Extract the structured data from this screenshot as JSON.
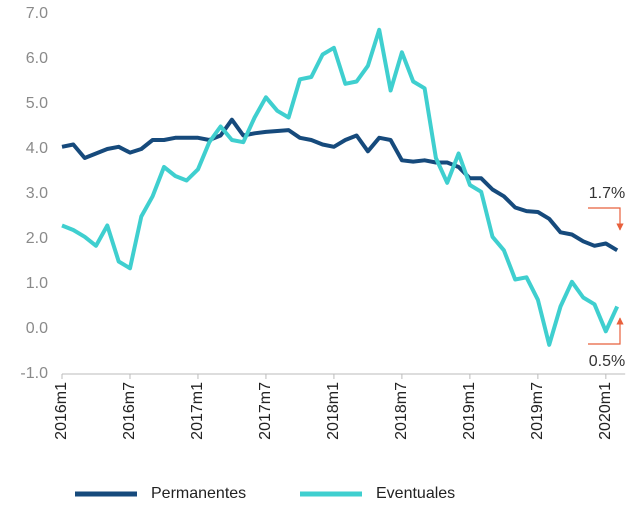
{
  "chart_data": {
    "type": "line",
    "categories": [
      "2016m1",
      null,
      null,
      null,
      null,
      null,
      "2016m7",
      null,
      null,
      null,
      null,
      null,
      "2017m1",
      null,
      null,
      null,
      null,
      null,
      "2017m7",
      null,
      null,
      null,
      null,
      null,
      "2018m1",
      null,
      null,
      null,
      null,
      null,
      "2018m7",
      null,
      null,
      null,
      null,
      null,
      "2019m1",
      null,
      null,
      null,
      null,
      null,
      "2019m7",
      null,
      null,
      null,
      null,
      null,
      "2020m1",
      null
    ],
    "series": [
      {
        "name": "Permanentes",
        "color": "#164a7c",
        "values": [
          4.05,
          4.1,
          3.8,
          3.9,
          4.0,
          4.05,
          3.92,
          4.0,
          4.2,
          4.2,
          4.25,
          4.25,
          4.25,
          4.2,
          4.3,
          4.65,
          4.3,
          4.35,
          4.38,
          4.4,
          4.42,
          4.25,
          4.2,
          4.1,
          4.05,
          4.2,
          4.3,
          3.95,
          4.25,
          4.2,
          3.75,
          3.72,
          3.75,
          3.7,
          3.7,
          3.6,
          3.35,
          3.35,
          3.1,
          2.95,
          2.7,
          2.62,
          2.6,
          2.45,
          2.15,
          2.1,
          1.95,
          1.85,
          1.9,
          1.75
        ]
      },
      {
        "name": "Eventuales",
        "color": "#3fcfcf",
        "values": [
          2.3,
          2.2,
          2.05,
          1.85,
          2.3,
          1.5,
          1.35,
          2.5,
          2.95,
          3.6,
          3.4,
          3.3,
          3.55,
          4.15,
          4.5,
          4.2,
          4.15,
          4.7,
          5.15,
          4.85,
          4.7,
          5.55,
          5.6,
          6.1,
          6.25,
          5.45,
          5.5,
          5.85,
          6.65,
          5.3,
          6.15,
          5.5,
          5.35,
          3.8,
          3.25,
          3.9,
          3.2,
          3.05,
          2.05,
          1.75,
          1.1,
          1.15,
          0.65,
          -0.35,
          0.5,
          1.05,
          0.7,
          0.55,
          -0.05,
          0.5
        ]
      }
    ],
    "ylim": [
      -1,
      7
    ],
    "yticks": [
      {
        "value": -1,
        "label": "-1.0"
      },
      {
        "value": 0,
        "label": "0.0"
      },
      {
        "value": 1,
        "label": "1.0"
      },
      {
        "value": 2,
        "label": "2.0"
      },
      {
        "value": 3,
        "label": "3.0"
      },
      {
        "value": 4,
        "label": "4.0"
      },
      {
        "value": 5,
        "label": "5.0"
      },
      {
        "value": 6,
        "label": "6.0"
      },
      {
        "value": 7,
        "label": "7.0"
      }
    ],
    "grid": false,
    "legend": "bottom",
    "annotations": [
      "1.7%",
      "0.5%"
    ]
  }
}
